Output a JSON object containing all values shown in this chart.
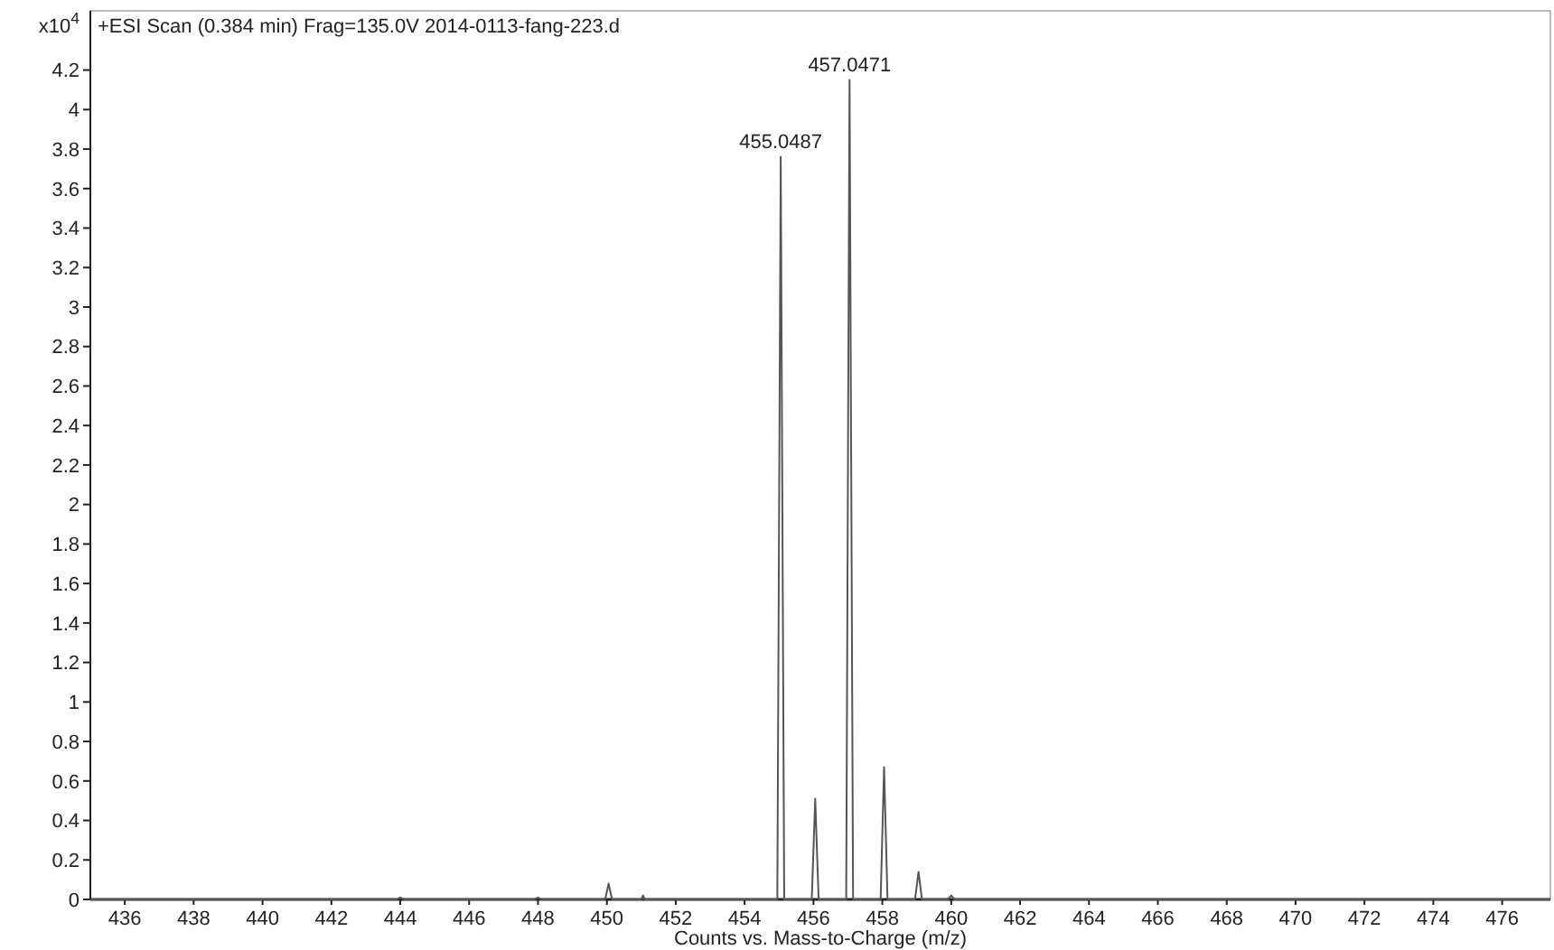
{
  "chart_data": {
    "type": "line",
    "title": "+ESI Scan (0.384 min) Frag=135.0V 2014-0113-fang-223.d",
    "xlabel": "Counts vs. Mass-to-Charge (m/z)",
    "ylabel": "x10$^{4}$",
    "xlim": [
      435,
      477.4
    ],
    "ylim": [
      0,
      4.5
    ],
    "xticks": [
      436,
      438,
      440,
      442,
      444,
      446,
      448,
      450,
      452,
      454,
      456,
      458,
      460,
      462,
      464,
      466,
      468,
      470,
      472,
      474,
      476
    ],
    "yticks": [
      0,
      0.2,
      0.4,
      0.6,
      0.8,
      1,
      1.2,
      1.4,
      1.6,
      1.8,
      2,
      2.2,
      2.4,
      2.6,
      2.8,
      3,
      3.2,
      3.4,
      3.6,
      3.8,
      4,
      4.2
    ],
    "grid": false,
    "marker": "none",
    "line_style": "solid",
    "series": [
      {
        "color": "#555555",
        "x": [
          435,
          443.9,
          444,
          444.1,
          447.9,
          448,
          448.1,
          449.95,
          450.05,
          450.15,
          451,
          451.05,
          451.1,
          454.95,
          455.0487,
          455.15,
          455.95,
          456.05,
          456.15,
          456.95,
          457.0471,
          457.15,
          457.95,
          458.05,
          458.15,
          458.95,
          459.05,
          459.15,
          459.9,
          460,
          460.1,
          477.4
        ],
        "values": [
          0,
          0,
          0.01,
          0,
          0,
          0.01,
          0,
          0,
          0.08,
          0,
          0,
          0.02,
          0,
          0,
          3.76,
          0,
          0,
          0.51,
          0,
          0,
          4.15,
          0,
          0,
          0.67,
          0,
          0,
          0.14,
          0,
          0,
          0.02,
          0,
          0
        ]
      }
    ],
    "annotations": [
      {
        "text": "455.0487",
        "x": 455.0487,
        "y": 3.76
      },
      {
        "text": "457.0471",
        "x": 457.0471,
        "y": 4.15
      }
    ]
  }
}
